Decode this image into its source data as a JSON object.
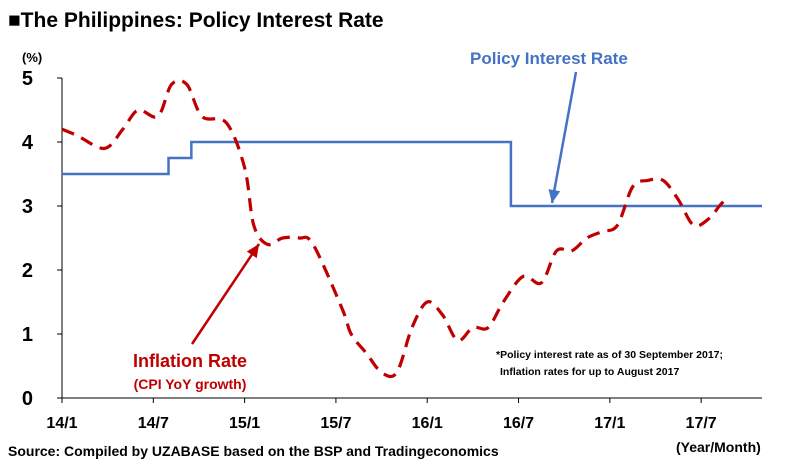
{
  "chart_data": {
    "type": "line",
    "title": "■The Philippines: Policy Interest Rate",
    "ylabel": "(%)",
    "xlabel": "(Year/Month)",
    "ylim": [
      0,
      5
    ],
    "yticks": [
      "0",
      "1",
      "2",
      "3",
      "4",
      "5"
    ],
    "x_tick_labels": [
      "14/1",
      "14/7",
      "15/1",
      "15/7",
      "16/1",
      "16/7",
      "17/1",
      "17/7"
    ],
    "x_domain": [
      0,
      46
    ],
    "series": [
      {
        "name": "Policy Interest Rate",
        "color": "#4472C4",
        "style": "step",
        "points": [
          [
            0,
            3.5
          ],
          [
            7,
            3.5
          ],
          [
            7,
            3.75
          ],
          [
            8.5,
            3.75
          ],
          [
            8.5,
            4.0
          ],
          [
            29.5,
            4.0
          ],
          [
            29.5,
            3.0
          ],
          [
            46,
            3.0
          ]
        ]
      },
      {
        "name": "Inflation Rate",
        "subtitle": "(CPI YoY growth)",
        "color": "#C00000",
        "style": "dashed",
        "points": [
          [
            0,
            4.2
          ],
          [
            1,
            4.1
          ],
          [
            2.8,
            3.9
          ],
          [
            4,
            4.2
          ],
          [
            5,
            4.5
          ],
          [
            6.3,
            4.4
          ],
          [
            7.2,
            4.9
          ],
          [
            8.2,
            4.9
          ],
          [
            9.2,
            4.4
          ],
          [
            10.8,
            4.3
          ],
          [
            12,
            3.6
          ],
          [
            12.6,
            2.7
          ],
          [
            13.5,
            2.4
          ],
          [
            14.5,
            2.5
          ],
          [
            15.6,
            2.5
          ],
          [
            16.5,
            2.4
          ],
          [
            18.4,
            1.4
          ],
          [
            19,
            1.0
          ],
          [
            20,
            0.7
          ],
          [
            21,
            0.4
          ],
          [
            22,
            0.4
          ],
          [
            23,
            1.1
          ],
          [
            24,
            1.5
          ],
          [
            25,
            1.3
          ],
          [
            26,
            0.9
          ],
          [
            27,
            1.1
          ],
          [
            28,
            1.1
          ],
          [
            29,
            1.5
          ],
          [
            30.3,
            1.9
          ],
          [
            31.5,
            1.8
          ],
          [
            32.5,
            2.3
          ],
          [
            33.5,
            2.3
          ],
          [
            34.5,
            2.5
          ],
          [
            35.5,
            2.6
          ],
          [
            36.5,
            2.7
          ],
          [
            37.5,
            3.3
          ],
          [
            38.5,
            3.4
          ],
          [
            39.5,
            3.4
          ],
          [
            40.5,
            3.1
          ],
          [
            41.5,
            2.7
          ],
          [
            42.5,
            2.8
          ],
          [
            43.2,
            3.0
          ],
          [
            43.6,
            3.1
          ]
        ]
      }
    ],
    "annotations": {
      "policy_label": "Policy Interest Rate",
      "inflation_label": "Inflation Rate",
      "inflation_sublabel": "(CPI YoY growth)",
      "note_line1": "*Policy interest rate as of 30 September 2017;",
      "note_line2": "Inflation rates for up to August 2017"
    },
    "source": "Source: Compiled by UZABASE based on the BSP and Tradingeconomics",
    "grid": false
  }
}
